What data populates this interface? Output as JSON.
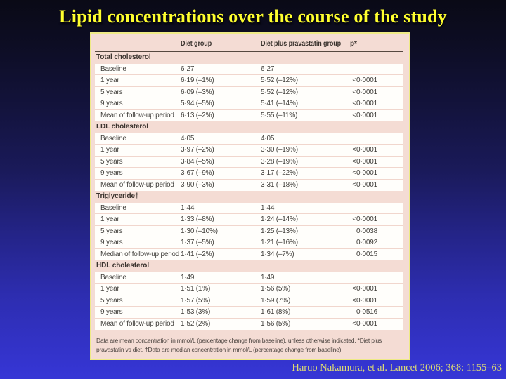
{
  "slide": {
    "title": "Lipid concentrations over the course of the study",
    "citation": "Haruo Nakamura, et al. Lancet 2006; 368: 1155–63"
  },
  "table": {
    "columns": [
      "",
      "Diet group",
      "Diet plus pravastatin group",
      "p*"
    ],
    "sections": [
      {
        "name": "Total cholesterol",
        "rows": [
          [
            "Baseline",
            "6·27",
            "6·27",
            ""
          ],
          [
            "1 year",
            "6·19 (–1%)",
            "5·52 (–12%)",
            "<0·0001"
          ],
          [
            "5 years",
            "6·09 (–3%)",
            "5·52 (–12%)",
            "<0·0001"
          ],
          [
            "9 years",
            "5·94 (–5%)",
            "5·41 (–14%)",
            "<0·0001"
          ],
          [
            "Mean of follow-up period",
            "6·13 (–2%)",
            "5·55 (–11%)",
            "<0·0001"
          ]
        ]
      },
      {
        "name": "LDL cholesterol",
        "rows": [
          [
            "Baseline",
            "4·05",
            "4·05",
            ""
          ],
          [
            "1 year",
            "3·97 (–2%)",
            "3·30 (–19%)",
            "<0·0001"
          ],
          [
            "5 years",
            "3·84 (–5%)",
            "3·28 (–19%)",
            "<0·0001"
          ],
          [
            "9 years",
            "3·67 (–9%)",
            "3·17 (–22%)",
            "<0·0001"
          ],
          [
            "Mean of follow-up period",
            "3·90 (–3%)",
            "3·31 (–18%)",
            "<0·0001"
          ]
        ]
      },
      {
        "name": "Triglyceride†",
        "rows": [
          [
            "Baseline",
            "1·44",
            "1·44",
            ""
          ],
          [
            "1 year",
            "1·33 (–8%)",
            "1·24 (–14%)",
            "<0·0001"
          ],
          [
            "5 years",
            "1·30 (–10%)",
            "1·25 (–13%)",
            "0·0038"
          ],
          [
            "9 years",
            "1·37 (–5%)",
            "1·21 (–16%)",
            "0·0092"
          ],
          [
            "Median of follow-up period",
            "1·41 (–2%)",
            "1·34 (–7%)",
            "0·0015"
          ]
        ]
      },
      {
        "name": "HDL cholesterol",
        "rows": [
          [
            "Baseline",
            "1·49",
            "1·49",
            ""
          ],
          [
            "1 year",
            "1·51 (1%)",
            "1·56 (5%)",
            "<0·0001"
          ],
          [
            "5 years",
            "1·57 (5%)",
            "1·59 (7%)",
            "<0·0001"
          ],
          [
            "9 years",
            "1·53 (3%)",
            "1·61 (8%)",
            "0·0516"
          ],
          [
            "Mean of follow-up period",
            "1·52 (2%)",
            "1·56 (5%)",
            "<0·0001"
          ]
        ]
      }
    ],
    "footnote": "Data are mean concentration in mmol/L (percentage change from baseline), unless otherwise indicated. *Diet plus pravastatin vs diet. †Data are median concentration in mmol/L (percentage change from baseline)."
  },
  "colors": {
    "title_yellow": "#ffff2e",
    "citation_yellow": "#dedc74",
    "table_pink": "#f4dcd4",
    "row_white": "#fffefb",
    "table_border_yellow": "#eeea86",
    "header_rule_brown": "#554840",
    "table_text_dark": "#3a332e",
    "background_top": "#0a0a16",
    "background_bottom": "#3636d6"
  }
}
